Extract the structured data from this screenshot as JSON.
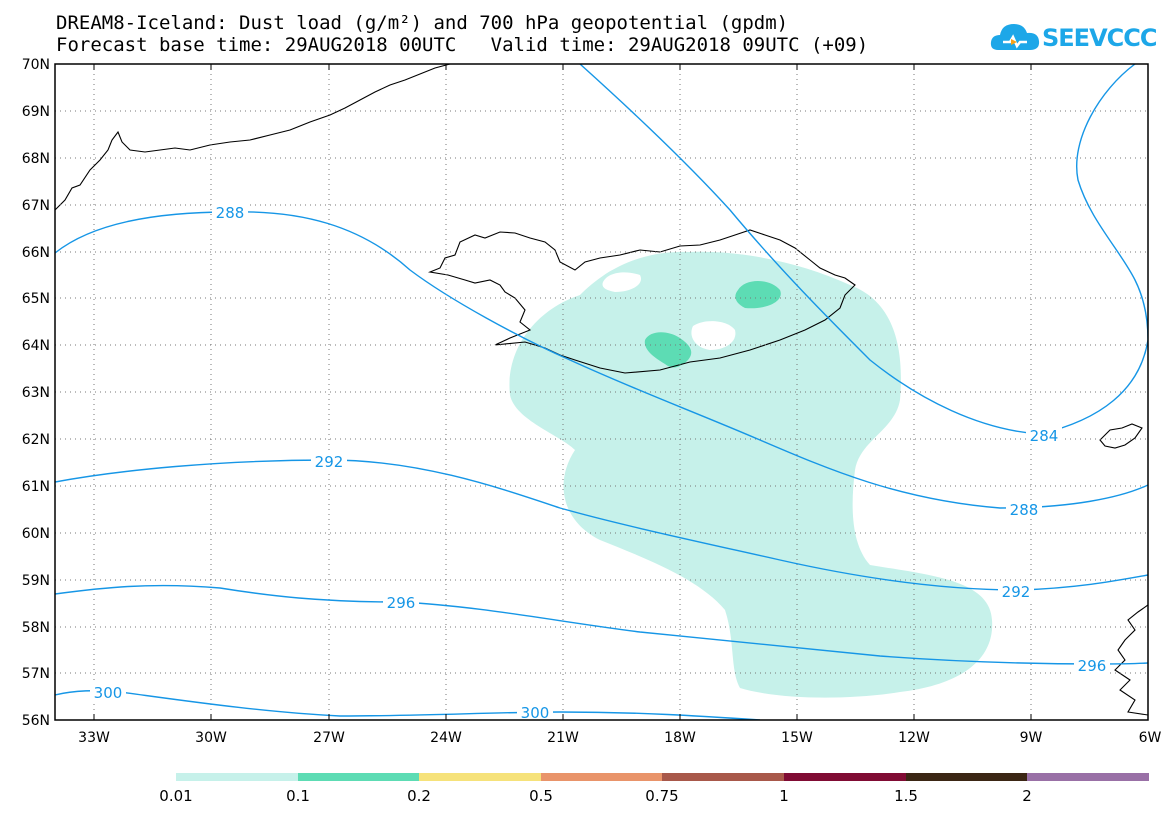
{
  "header": {
    "title_line1": "DREAM8-Iceland: Dust load (g/m²) and 700 hPa geopotential (gpdm)",
    "title_line2": "Forecast base time: 29AUG2018 00UTC   Valid time: 29AUG2018 09UTC (+09)",
    "logo_text": "SEEVCCC"
  },
  "map": {
    "lat_labels": [
      "70N",
      "69N",
      "68N",
      "67N",
      "66N",
      "65N",
      "64N",
      "63N",
      "62N",
      "61N",
      "60N",
      "59N",
      "58N",
      "57N",
      "56N"
    ],
    "lon_labels": [
      "33W",
      "30W",
      "27W",
      "24W",
      "21W",
      "18W",
      "15W",
      "12W",
      "9W",
      "6W"
    ],
    "contour_labels": [
      "288",
      "284",
      "292",
      "288",
      "296",
      "292",
      "300",
      "296",
      "300"
    ],
    "contour_color": "#1696e6"
  },
  "colorbar": {
    "labels": [
      "0.01",
      "0.1",
      "0.2",
      "0.5",
      "0.75",
      "1",
      "1.5",
      "2"
    ],
    "colors": [
      "#c6f1ea",
      "#5ddcb4",
      "#f6e27a",
      "#e9946a",
      "#a8584a",
      "#800b34",
      "#3b2614",
      "#9970a6"
    ]
  }
}
